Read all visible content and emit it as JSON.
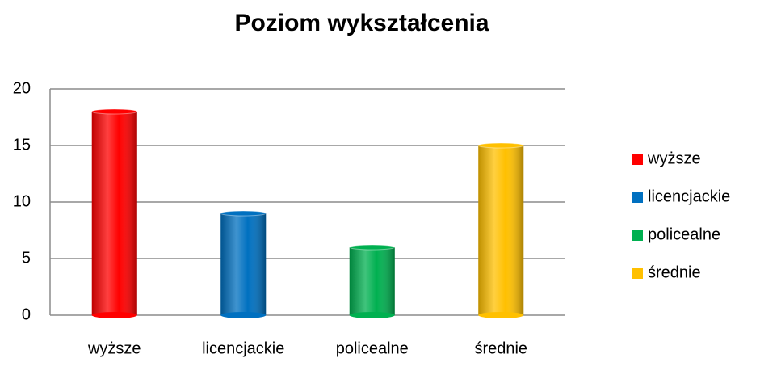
{
  "chart_data": {
    "type": "bar",
    "title": "Poziom wykształcenia",
    "categories": [
      "wyższe",
      "licencjackie",
      "policealne",
      "średnie"
    ],
    "values": [
      18,
      9,
      6,
      15
    ],
    "colors": [
      "#ff0000",
      "#0070c0",
      "#00b050",
      "#ffc000"
    ],
    "ylim": [
      0,
      20
    ],
    "yticks": [
      0,
      5,
      10,
      15,
      20
    ],
    "grid": true,
    "legend": "right"
  }
}
